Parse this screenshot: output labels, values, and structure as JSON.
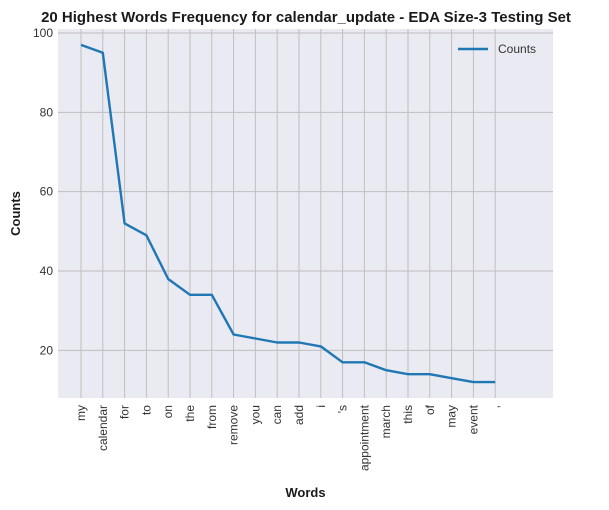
{
  "chart_data": {
    "type": "line",
    "title": "20 Highest Words Frequency for calendar_update - EDA Size-3 Testing Set",
    "xlabel": "Words",
    "ylabel": "Counts",
    "categories": [
      "my",
      "calendar",
      "for",
      "to",
      "on",
      "the",
      "from",
      "remove",
      "you",
      "can",
      "add",
      "i",
      "'s",
      "appointment",
      "march",
      "this",
      "of",
      "may",
      "event",
      ","
    ],
    "series": [
      {
        "name": "Counts",
        "values": [
          97,
          95,
          52,
          49,
          38,
          34,
          34,
          24,
          23,
          22,
          22,
          21,
          17,
          17,
          15,
          14,
          14,
          13,
          12,
          12
        ]
      }
    ],
    "ylim": [
      8,
      101
    ],
    "yticks": [
      20,
      40,
      60,
      80,
      100
    ],
    "grid": true,
    "legend": "top-right",
    "colors": {
      "line": "#1f77b4",
      "plot_background": "#eaeaf2",
      "grid": "#bfbfbf"
    }
  }
}
